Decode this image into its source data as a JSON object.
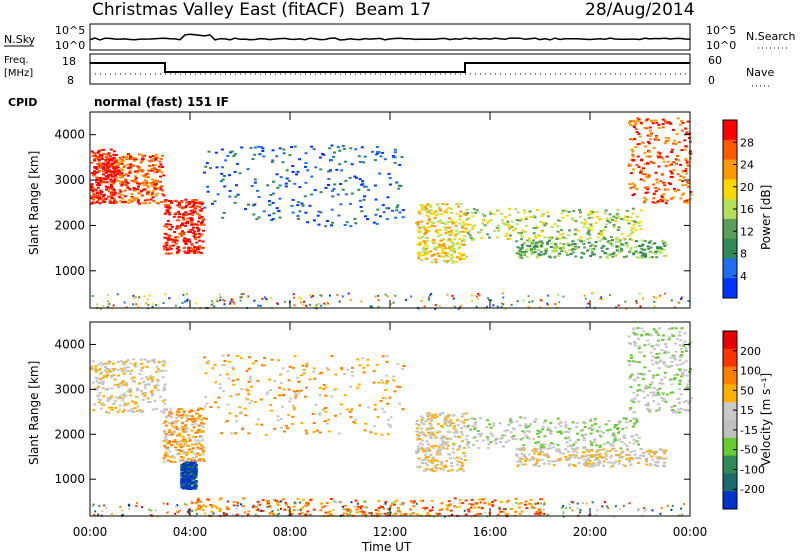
{
  "header": {
    "station": "Christmas Valley East (fitACF)",
    "beam": "Beam 17",
    "date": "28/Aug/2014"
  },
  "strip": {
    "nsky_label": "N.Sky",
    "nsearch_label": "N.Search",
    "left_ticks": [
      "10^5",
      "10^0"
    ],
    "right_ticks": [
      "10^5",
      "10^0"
    ],
    "freq_label_1": "Freq.",
    "freq_label_2": "[MHz]",
    "freq_ticks": [
      "18",
      "8"
    ],
    "nave_label": "Nave",
    "nave_ticks": [
      "60",
      "0"
    ],
    "cpid_label": "CPID",
    "cpid_value": "normal (fast) 151 IF"
  },
  "colors": {
    "power": [
      "#0033ff",
      "#1f6ef0",
      "#2e8b57",
      "#5aa05a",
      "#b6e05a",
      "#ffd700",
      "#ff9900",
      "#ff5a00",
      "#ff0000"
    ],
    "velocity": [
      "#0033cc",
      "#1a6b6b",
      "#2e8b57",
      "#66cc33",
      "#c0c0c0",
      "#c8c8c8",
      "#ffb000",
      "#ff7f00",
      "#ff3300",
      "#e60000"
    ]
  },
  "chart_data": [
    {
      "type": "heatmap",
      "name_hint": "power",
      "ylabel": "Slant Range [km]",
      "xlabel": "Time UT",
      "x_ticks": [
        "00:00",
        "04:00",
        "08:00",
        "12:00",
        "16:00",
        "20:00",
        "00:00"
      ],
      "y_ticks": [
        1000,
        2000,
        3000,
        4000
      ],
      "ylim": [
        180,
        4500
      ],
      "xlim_hours": [
        0,
        24
      ],
      "colorbar_label": "Power [dB]",
      "colorbar_ticks": [
        "4",
        "8",
        "12",
        "16",
        "20",
        "24",
        "28"
      ],
      "features": [
        {
          "hour": [
            0.0,
            1.0
          ],
          "range": [
            2500,
            3700
          ],
          "level": 8
        },
        {
          "hour": [
            1.0,
            2.9
          ],
          "range": [
            2500,
            3600
          ],
          "level": 7
        },
        {
          "hour": [
            2.9,
            4.5
          ],
          "range": [
            1400,
            2600
          ],
          "level": 8
        },
        {
          "hour": [
            4.5,
            12.5
          ],
          "range": [
            2000,
            3800
          ],
          "level": 1
        },
        {
          "hour": [
            13.0,
            15.0
          ],
          "range": [
            1200,
            2500
          ],
          "level": 5
        },
        {
          "hour": [
            15.0,
            22.0
          ],
          "range": [
            1700,
            2400
          ],
          "level": 4
        },
        {
          "hour": [
            17.0,
            23.0
          ],
          "range": [
            1300,
            1700
          ],
          "level": 3
        },
        {
          "hour": [
            21.5,
            24.0
          ],
          "range": [
            2500,
            4400
          ],
          "level": 7
        }
      ]
    },
    {
      "type": "heatmap",
      "name_hint": "velocity",
      "ylabel": "Slant Range [km]",
      "xlabel": "Time UT",
      "x_ticks": [
        "00:00",
        "04:00",
        "08:00",
        "12:00",
        "16:00",
        "20:00",
        "00:00"
      ],
      "y_ticks": [
        1000,
        2000,
        3000,
        4000
      ],
      "ylim": [
        180,
        4500
      ],
      "xlim_hours": [
        0,
        24
      ],
      "colorbar_label": "Velocity [m s⁻¹]",
      "colorbar_ticks": [
        "200",
        "100",
        "50",
        "15",
        "-15",
        "-50",
        "-100",
        "-200"
      ],
      "features": [
        {
          "hour": [
            0.0,
            3.0
          ],
          "range": [
            2500,
            3700
          ],
          "level": 5
        },
        {
          "hour": [
            2.9,
            4.5
          ],
          "range": [
            1400,
            2600
          ],
          "level": 6
        },
        {
          "hour": [
            3.6,
            4.2
          ],
          "range": [
            800,
            1400
          ],
          "level": 0
        },
        {
          "hour": [
            4.5,
            12.5
          ],
          "range": [
            2000,
            3800
          ],
          "level": 6
        },
        {
          "hour": [
            13.0,
            15.0
          ],
          "range": [
            1200,
            2500
          ],
          "level": 5
        },
        {
          "hour": [
            15.0,
            22.0
          ],
          "range": [
            1700,
            2400
          ],
          "level": 4
        },
        {
          "hour": [
            17.0,
            23.0
          ],
          "range": [
            1300,
            1700
          ],
          "level": 5
        },
        {
          "hour": [
            21.5,
            24.0
          ],
          "range": [
            2500,
            4400
          ],
          "level": 4
        },
        {
          "hour": [
            4.0,
            18.0
          ],
          "range": [
            200,
            600
          ],
          "level": 7
        }
      ]
    }
  ]
}
